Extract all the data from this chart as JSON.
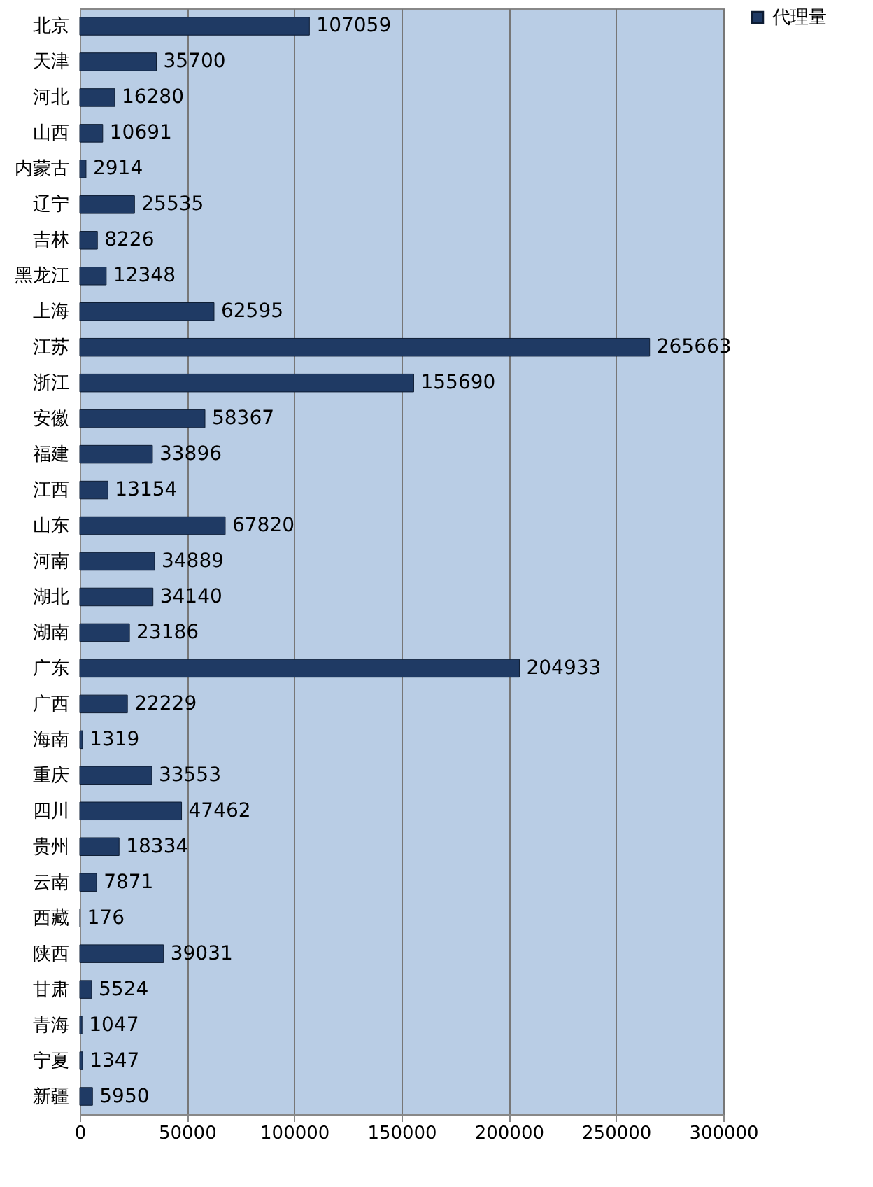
{
  "chart_data": {
    "type": "bar",
    "orientation": "horizontal",
    "categories": [
      "北京",
      "天津",
      "河北",
      "山西",
      "内蒙古",
      "辽宁",
      "吉林",
      "黑龙江",
      "上海",
      "江苏",
      "浙江",
      "安徽",
      "福建",
      "江西",
      "山东",
      "河南",
      "湖北",
      "湖南",
      "广东",
      "广西",
      "海南",
      "重庆",
      "四川",
      "贵州",
      "云南",
      "西藏",
      "陕西",
      "甘肃",
      "青海",
      "宁夏",
      "新疆"
    ],
    "series": [
      {
        "name": "代理量",
        "color": "#1f3a64",
        "values": [
          107059,
          35700,
          16280,
          10691,
          2914,
          25535,
          8226,
          12348,
          62595,
          265663,
          155690,
          58367,
          33896,
          13154,
          67820,
          34889,
          34140,
          23186,
          204933,
          22229,
          1319,
          33553,
          47462,
          18334,
          7871,
          176,
          39031,
          5524,
          1047,
          1347,
          5950
        ]
      }
    ],
    "xlim": [
      0,
      300000
    ],
    "xticks": [
      0,
      50000,
      100000,
      150000,
      200000,
      250000,
      300000
    ],
    "grid": "x",
    "legend": "right",
    "data_labels": true
  }
}
